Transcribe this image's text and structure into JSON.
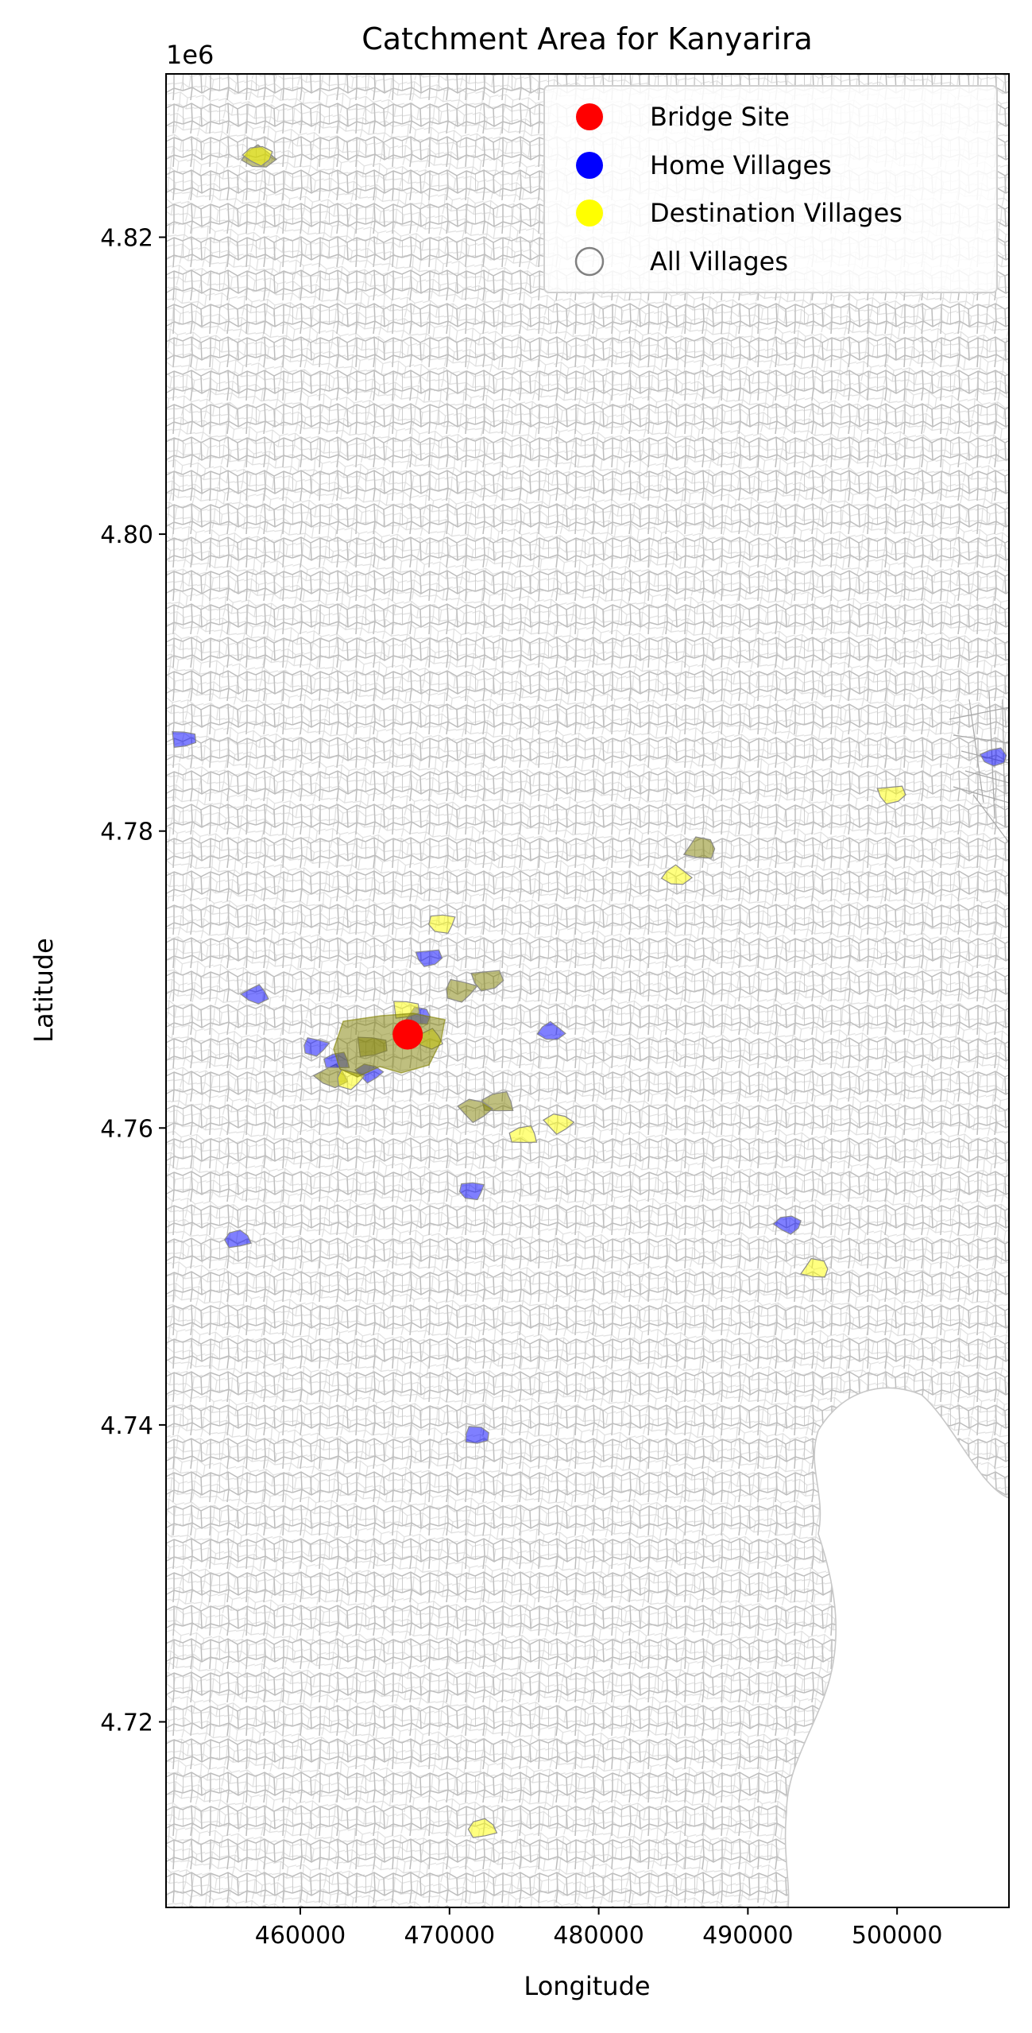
{
  "chart_data": {
    "type": "map",
    "title": "Catchment Area for Kanyarira",
    "xlabel": "Longitude",
    "ylabel": "Latitude",
    "y_offset_label": "1e6",
    "xlim": [
      451000,
      507500
    ],
    "ylim": [
      4.7075,
      4.831
    ],
    "xticks": [
      460000,
      470000,
      480000,
      490000,
      500000
    ],
    "xtick_labels": [
      "460000",
      "470000",
      "480000",
      "490000",
      "500000"
    ],
    "yticks": [
      4.72,
      4.74,
      4.76,
      4.78,
      4.8,
      4.82
    ],
    "ytick_labels": [
      "4.72",
      "4.74",
      "4.76",
      "4.78",
      "4.80",
      "4.82"
    ],
    "grid": false,
    "legend": {
      "placement": "top-right",
      "entries": [
        {
          "label": "Bridge Site",
          "color": "#ff0000",
          "marker": "filled-circle"
        },
        {
          "label": "Home Villages",
          "color": "#0000ff",
          "marker": "filled-circle"
        },
        {
          "label": "Destination Villages",
          "color": "#ffff00",
          "marker": "filled-circle"
        },
        {
          "label": "All Villages",
          "color": "#808080",
          "marker": "hollow-circle"
        }
      ]
    },
    "colors": {
      "village_boundary": "#bdbdbd",
      "home_fill": "#0000ff",
      "destination_fill": "#ffff00",
      "overlap_fill": "#808000",
      "bridge": "#ff0000"
    },
    "bridge_site": {
      "x": 467200,
      "y": 4.7663
    },
    "home_villages": [
      {
        "x": 452100,
        "y": 4.7862
      },
      {
        "x": 457000,
        "y": 4.769
      },
      {
        "x": 461000,
        "y": 4.7655
      },
      {
        "x": 462500,
        "y": 4.7645
      },
      {
        "x": 464600,
        "y": 4.7637
      },
      {
        "x": 467900,
        "y": 4.7675
      },
      {
        "x": 468600,
        "y": 4.7715
      },
      {
        "x": 476800,
        "y": 4.7665
      },
      {
        "x": 471500,
        "y": 4.7558
      },
      {
        "x": 455800,
        "y": 4.7525
      },
      {
        "x": 492700,
        "y": 4.7535
      },
      {
        "x": 471800,
        "y": 4.7393
      },
      {
        "x": 506500,
        "y": 4.785
      }
    ],
    "destination_villages": [
      {
        "x": 467000,
        "y": 4.768
      },
      {
        "x": 468600,
        "y": 4.766
      },
      {
        "x": 463300,
        "y": 4.7633
      },
      {
        "x": 475000,
        "y": 4.7595
      },
      {
        "x": 477300,
        "y": 4.7603
      },
      {
        "x": 494500,
        "y": 4.7505
      },
      {
        "x": 499600,
        "y": 4.7825
      },
      {
        "x": 485200,
        "y": 4.777
      },
      {
        "x": 469500,
        "y": 4.7738
      },
      {
        "x": 472200,
        "y": 4.7128
      },
      {
        "x": 457200,
        "y": 4.8255
      }
    ],
    "overlap_villages": [
      {
        "x": 464700,
        "y": 4.7655
      },
      {
        "x": 462100,
        "y": 4.7635
      },
      {
        "x": 470700,
        "y": 4.7693
      },
      {
        "x": 473300,
        "y": 4.7617
      },
      {
        "x": 471700,
        "y": 4.7612
      },
      {
        "x": 486800,
        "y": 4.7788
      },
      {
        "x": 472500,
        "y": 4.77
      },
      {
        "x": 457200,
        "y": 4.8254
      }
    ]
  }
}
